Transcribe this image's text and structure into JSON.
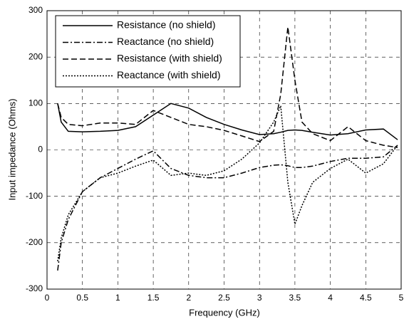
{
  "chart_data": {
    "type": "line",
    "xlabel": "Frequency (GHz)",
    "ylabel": "Input impedance (Ohms)",
    "x": [
      0.15,
      0.2,
      0.3,
      0.5,
      0.75,
      1,
      1.25,
      1.5,
      1.75,
      2,
      2.25,
      2.5,
      2.75,
      3,
      3.2,
      3.3,
      3.4,
      3.5,
      3.6,
      3.75,
      4,
      4.25,
      4.5,
      4.75,
      4.95
    ],
    "series": [
      {
        "name": "Resistance (no shield)",
        "color": "#000000",
        "dash": "none",
        "values": [
          100,
          60,
          40,
          39,
          40,
          42,
          50,
          75,
          100,
          90,
          70,
          55,
          43,
          33,
          35,
          38,
          42,
          43,
          42,
          38,
          32,
          35,
          43,
          45,
          22
        ]
      },
      {
        "name": "Reactance (no shield)",
        "color": "#000000",
        "dash": "8 3 2 3",
        "values": [
          -260,
          -200,
          -150,
          -90,
          -60,
          -40,
          -20,
          -2,
          -40,
          -55,
          -60,
          -60,
          -50,
          -38,
          -33,
          -32,
          -34,
          -38,
          -38,
          -35,
          -25,
          -18,
          -18,
          -15,
          10
        ]
      },
      {
        "name": "Resistance (with shield)",
        "color": "#000000",
        "dash": "8 4",
        "values": [
          100,
          70,
          55,
          52,
          58,
          58,
          55,
          85,
          70,
          55,
          50,
          42,
          30,
          18,
          40,
          120,
          265,
          150,
          60,
          35,
          20,
          50,
          20,
          10,
          5
        ]
      },
      {
        "name": "Reactance (with shield)",
        "color": "#000000",
        "dash": "2 2",
        "values": [
          -240,
          -190,
          -140,
          -90,
          -60,
          -50,
          -35,
          -22,
          -55,
          -50,
          -55,
          -45,
          -20,
          15,
          60,
          95,
          -70,
          -160,
          -120,
          -70,
          -40,
          -20,
          -50,
          -30,
          10
        ]
      }
    ],
    "xlim": [
      0,
      5
    ],
    "xticks": [
      0,
      0.5,
      1,
      1.5,
      2,
      2.5,
      3,
      3.5,
      4,
      4.5,
      5
    ],
    "ylim": [
      -300,
      300
    ],
    "yticks": [
      -300,
      -200,
      -100,
      0,
      100,
      200,
      300
    ],
    "grid": true,
    "legend": "upper-left"
  }
}
